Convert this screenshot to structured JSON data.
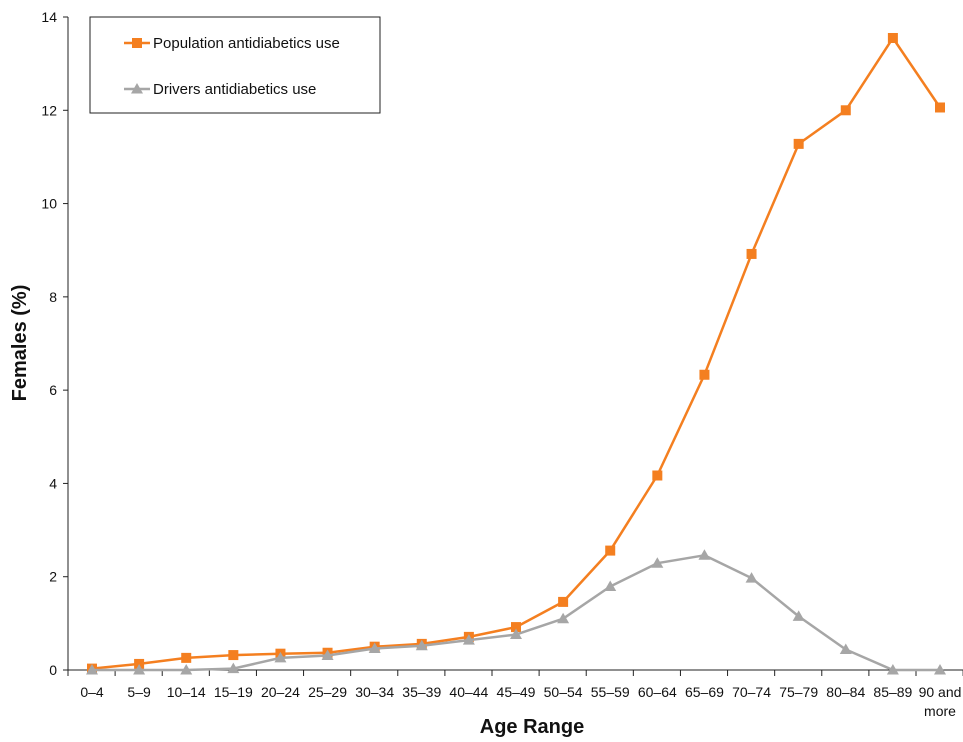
{
  "chart_data": {
    "type": "line",
    "xlabel": "Age Range",
    "ylabel": "Females (%)",
    "ylim": [
      0,
      14
    ],
    "yticks": [
      "0",
      "2",
      "4",
      "6",
      "8",
      "10",
      "12",
      "14"
    ],
    "categories": [
      [
        "0–4"
      ],
      [
        "5–9"
      ],
      [
        "10–14"
      ],
      [
        "15–19"
      ],
      [
        "20–24"
      ],
      [
        "25–29"
      ],
      [
        "30–34"
      ],
      [
        "35–39"
      ],
      [
        "40–44"
      ],
      [
        "45–49"
      ],
      [
        "50–54"
      ],
      [
        "55–59"
      ],
      [
        "60–64"
      ],
      [
        "65–69"
      ],
      [
        "70–74"
      ],
      [
        "75–79"
      ],
      [
        "80–84"
      ],
      [
        "85–89"
      ],
      [
        "90 and",
        "more"
      ]
    ],
    "legend_position": "top-left",
    "grid": false,
    "series": [
      {
        "name": "Population antidiabetics use",
        "color": "#f47f20",
        "marker": "square",
        "values": [
          0.03,
          0.13,
          0.26,
          0.32,
          0.35,
          0.37,
          0.5,
          0.56,
          0.71,
          0.92,
          1.46,
          2.56,
          4.17,
          6.33,
          8.92,
          11.28,
          12.0,
          13.55,
          12.06
        ]
      },
      {
        "name": "Drivers antidiabetics use",
        "color": "#a6a6a6",
        "marker": "triangle",
        "values": [
          0.0,
          0.0,
          0.0,
          0.03,
          0.26,
          0.31,
          0.46,
          0.52,
          0.64,
          0.76,
          1.1,
          1.79,
          2.29,
          2.46,
          1.97,
          1.15,
          0.44,
          0.0,
          0.0
        ]
      }
    ]
  }
}
